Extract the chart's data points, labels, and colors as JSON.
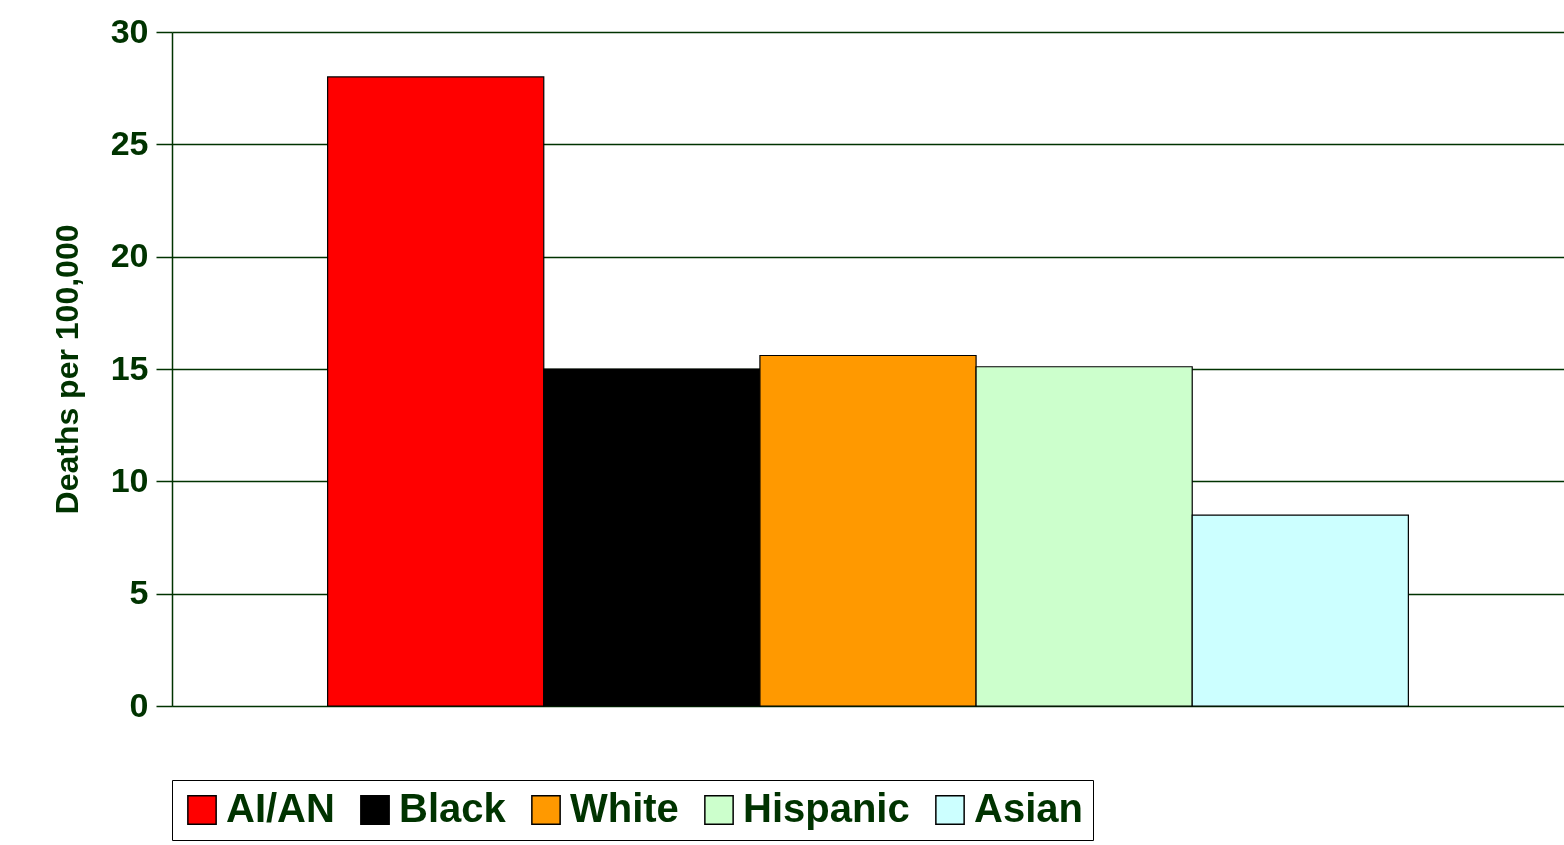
{
  "chart_data": {
    "type": "bar",
    "ylabel": "Deaths per 100,000",
    "categories": [
      null
    ],
    "series": [
      {
        "name": "AI/AN",
        "color": "#ff0000",
        "values": [
          28.0
        ]
      },
      {
        "name": "Black",
        "color": "#000000",
        "values": [
          15.0
        ]
      },
      {
        "name": "White",
        "color": "#ff9900",
        "values": [
          15.6
        ]
      },
      {
        "name": "Hispanic",
        "color": "#ccffcc",
        "values": [
          15.1
        ]
      },
      {
        "name": "Asian",
        "color": "#ccffff",
        "values": [
          8.5
        ]
      }
    ],
    "ylim": [
      0,
      30
    ],
    "yticks": [
      0,
      5,
      10,
      15,
      20,
      25,
      30
    ],
    "grid": "y",
    "legend": "bottom",
    "tick_labels": "y"
  }
}
